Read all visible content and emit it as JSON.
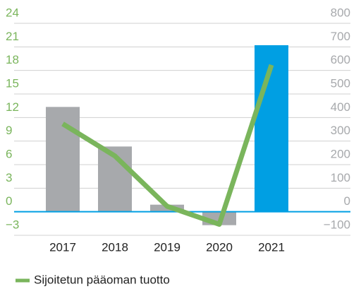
{
  "chart_data": {
    "type": "bar-line",
    "categories": [
      "2017",
      "2018",
      "2019",
      "2020",
      "2021"
    ],
    "series": [
      {
        "type": "bar",
        "axis": "y2",
        "colors": [
          "#a7a9ac",
          "#a7a9ac",
          "#a7a9ac",
          "#a7a9ac",
          "#009fe3"
        ],
        "values": [
          445,
          277,
          30,
          -57,
          707
        ]
      },
      {
        "type": "line",
        "name": "Sijoitetun pääoman tuotto",
        "color": "#7ab55c",
        "values": [
          11.2,
          7.1,
          0.7,
          -1.6,
          18.7
        ]
      }
    ],
    "ylim": [
      -3,
      24
    ],
    "yticks": [
      {
        "value": -3,
        "label": "−3"
      },
      0,
      3,
      6,
      9,
      12,
      15,
      18,
      21,
      24
    ],
    "y2lim": [
      -100,
      800
    ],
    "y2ticks": [
      {
        "value": -100,
        "label": "−100"
      },
      0,
      100,
      200,
      300,
      400,
      500,
      600,
      700,
      800
    ],
    "grid": true,
    "legend": "bottom-left"
  }
}
